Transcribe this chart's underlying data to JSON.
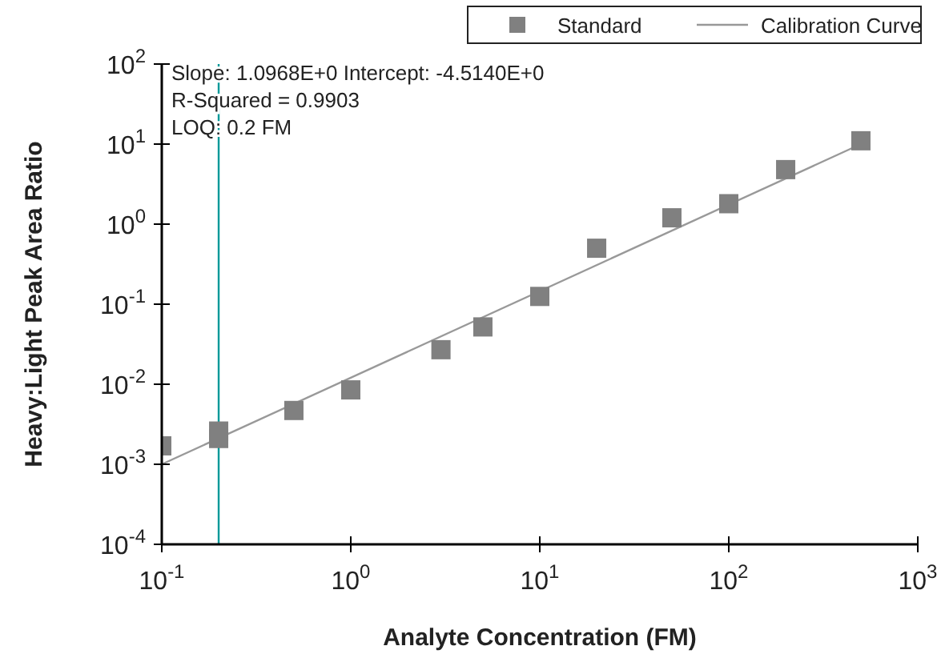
{
  "chart_data": {
    "type": "scatter",
    "xlabel": "Analyte Concentration (FM)",
    "ylabel": "Heavy:Light Peak Area Ratio",
    "log": "xy",
    "xlim": [
      0.1,
      1000
    ],
    "ylim": [
      0.0001,
      100
    ],
    "xticks": [
      {
        "value": 0.1,
        "label": "10$^{-1}$"
      },
      {
        "value": 1,
        "label": "10$^{0}$"
      },
      {
        "value": 10,
        "label": "10$^{1}$"
      },
      {
        "value": 100,
        "label": "10$^{2}$"
      },
      {
        "value": 1000,
        "label": "10$^{3}$"
      }
    ],
    "yticks": [
      {
        "value": 0.0001,
        "label": "10$^{-4}$"
      },
      {
        "value": 0.001,
        "label": "10$^{-3}$"
      },
      {
        "value": 0.01,
        "label": "10$^{-2}$"
      },
      {
        "value": 0.1,
        "label": "10$^{-1}$"
      },
      {
        "value": 1,
        "label": "10$^{0}$"
      },
      {
        "value": 10,
        "label": "10$^{1}$"
      },
      {
        "value": 100,
        "label": "10$^{2}$"
      }
    ],
    "series": [
      {
        "name": "Standard",
        "marker": "square",
        "color": "#808080",
        "x": [
          0.1,
          0.2,
          0.2,
          0.5,
          1,
          3,
          5,
          10,
          20,
          50,
          100,
          200,
          500
        ],
        "values": [
          0.0017,
          0.0021,
          0.0026,
          0.0047,
          0.0085,
          0.027,
          0.052,
          0.125,
          0.5,
          1.2,
          1.8,
          4.8,
          11
        ]
      },
      {
        "name": "Calibration Curve",
        "type": "line",
        "marker": "none",
        "line_style": "solid",
        "color": "#999999",
        "x": [
          0.1,
          500
        ],
        "values": [
          0.001,
          10
        ]
      }
    ],
    "ref_lines": [
      {
        "axis": "x",
        "value": 0.2,
        "color": "#009999"
      }
    ],
    "annotations": [
      "Slope: 1.0968E+0 Intercept: -4.5140E+0",
      "R-Squared = 0.9903",
      "LOQ: 0.2 FM"
    ],
    "legend": "top",
    "grid": false
  }
}
